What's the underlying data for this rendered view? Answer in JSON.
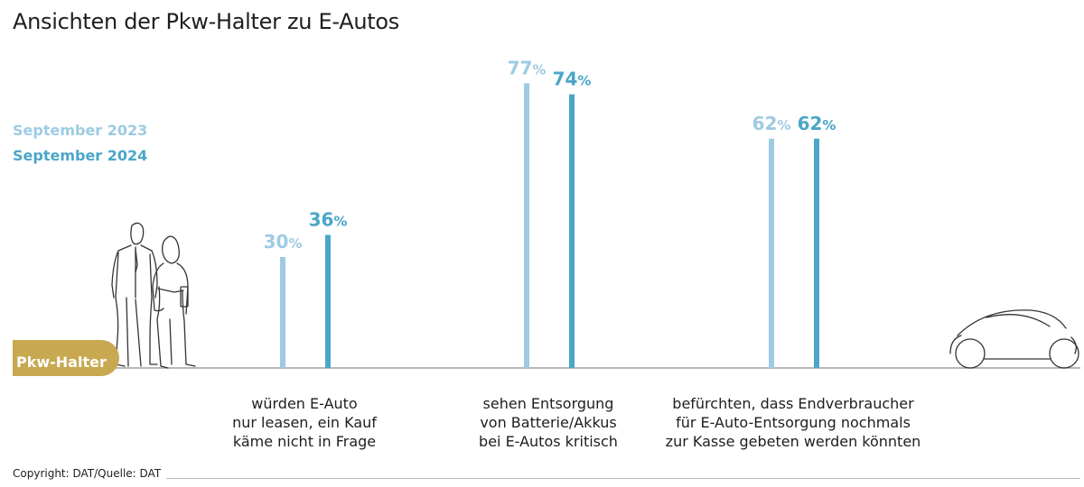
{
  "colors": {
    "sept2023": "#9ecbe3",
    "sept2024": "#4ba6c8",
    "badge": "#c8a850",
    "baseline": "#a0a0a0"
  },
  "icons": {
    "people": "two-people-icon",
    "car": "car-icon"
  },
  "badge_label": "Pkw-Halter",
  "copyright": "Copyright: DAT/Quelle: DAT",
  "chart_data": {
    "type": "bar",
    "title": "Ansichten der Pkw-Halter zu E-Autos",
    "categories": [
      "würden E-Auto\nnur leasen, ein Kauf\nkäme nicht in Frage",
      "sehen Entsorgung\nvon Batterie/Akkus\nbei E-Autos kritisch",
      "befürchten, dass Endverbraucher\nfür E-Auto-Entsorgung nochmals\nzur Kasse gebeten werden könnten"
    ],
    "series": [
      {
        "name": "September 2023",
        "values": [
          30,
          77,
          62
        ]
      },
      {
        "name": "September 2024",
        "values": [
          36,
          74,
          62
        ]
      }
    ],
    "unit": "%",
    "ylim": [
      0,
      100
    ],
    "grid": false,
    "legend": "left"
  }
}
